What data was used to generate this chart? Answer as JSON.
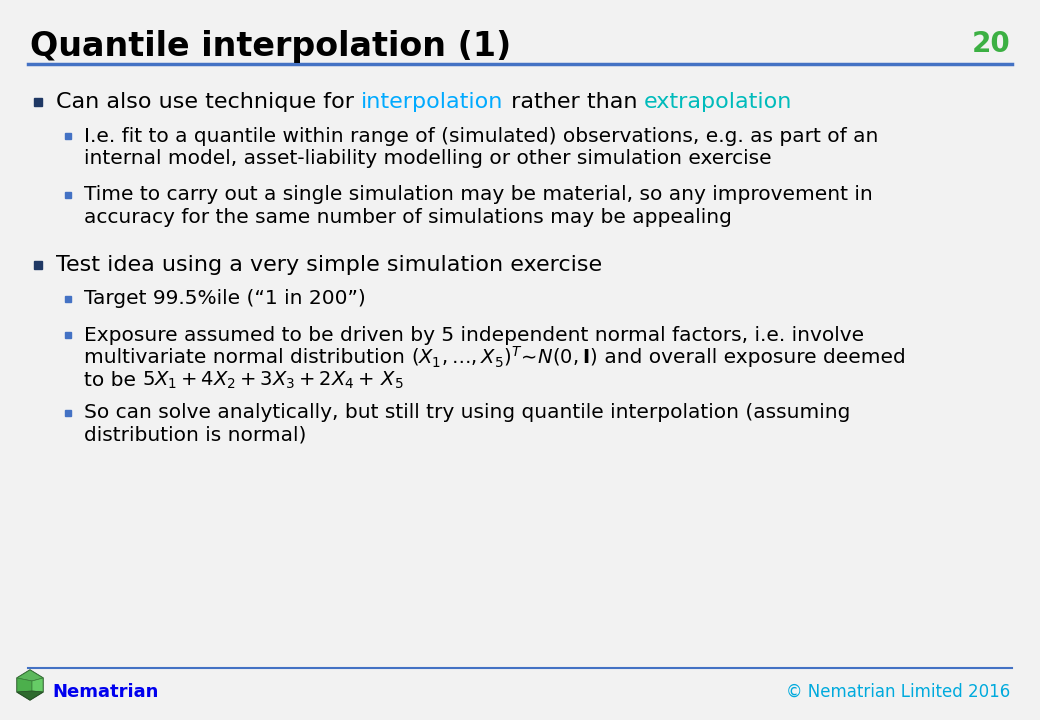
{
  "title": "Quantile interpolation (1)",
  "slide_number": "20",
  "title_color": "#000000",
  "slide_number_color": "#3CB043",
  "title_fontsize": 24,
  "header_line_color": "#4472C4",
  "background_color": "#F2F2F2",
  "footer_logo_text": "Nematrian",
  "footer_logo_color": "#0000EE",
  "footer_copyright": "© Nematrian Limited 2016",
  "footer_copyright_color": "#00AADD",
  "bullet_color": "#1F3864",
  "sub_bullet_color": "#4472C4",
  "interpolation_color": "#00AAFF",
  "extrapolation_color": "#00BBBB",
  "main_bullet_size": 16,
  "sub_bullet_size": 14.5
}
